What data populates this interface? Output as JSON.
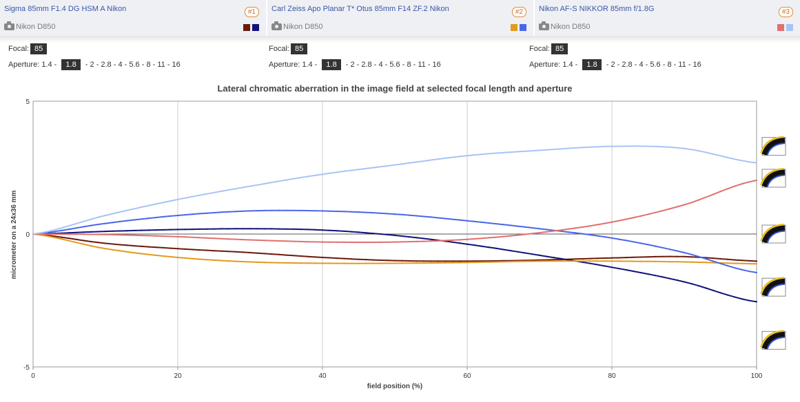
{
  "lenses": [
    {
      "name": "Sigma 85mm F1.4 DG HSM A Nikon",
      "number": "#1",
      "camera": "Nikon D850",
      "colors": [
        "#6b1a0c",
        "#12127a"
      ]
    },
    {
      "name": "Carl Zeiss Apo Planar T* Otus 85mm F14 ZF.2 Nikon",
      "number": "#2",
      "camera": "Nikon D850",
      "colors": [
        "#e29a1e",
        "#4a66e8"
      ]
    },
    {
      "name": "Nikon AF-S NIKKOR 85mm f/1.8G",
      "number": "#3",
      "camera": "Nikon D850",
      "colors": [
        "#e07070",
        "#a8c4f4"
      ]
    }
  ],
  "settings": {
    "focal_label": "Focal:",
    "focal_value": "85",
    "aperture_label": "Aperture:",
    "apertures": [
      "1.4",
      "1.8",
      "2",
      "2.8",
      "4",
      "5.6",
      "8",
      "11",
      "16"
    ],
    "selected_aperture": "1.8"
  },
  "chart_data": {
    "type": "line",
    "title": "Lateral chromatic aberration in the image field at selected focal length and aperture",
    "xlabel": "field position (%)",
    "ylabel": "micrometer on a 24x36 mm",
    "xlim": [
      0,
      100
    ],
    "ylim": [
      -5,
      5
    ],
    "xticks": [
      0,
      20,
      40,
      60,
      80,
      100
    ],
    "yticks": [
      -5,
      0,
      5
    ],
    "grid": "vertical",
    "x": [
      0,
      10,
      20,
      30,
      40,
      50,
      60,
      70,
      80,
      90,
      100
    ],
    "series": [
      {
        "color": "#6b1a0c",
        "values": [
          0,
          -0.35,
          -0.55,
          -0.7,
          -0.88,
          -1.0,
          -1.02,
          -0.98,
          -0.9,
          -0.85,
          -1.02
        ]
      },
      {
        "color": "#12127a",
        "values": [
          0,
          0.1,
          0.17,
          0.2,
          0.15,
          -0.05,
          -0.38,
          -0.8,
          -1.25,
          -1.8,
          -2.55
        ]
      },
      {
        "color": "#e29a1e",
        "values": [
          0,
          -0.55,
          -0.88,
          -1.05,
          -1.1,
          -1.1,
          -1.07,
          -1.02,
          -1.02,
          -1.05,
          -1.12
        ]
      },
      {
        "color": "#4a66e8",
        "values": [
          0,
          0.4,
          0.7,
          0.87,
          0.87,
          0.75,
          0.5,
          0.2,
          -0.15,
          -0.7,
          -1.45
        ]
      },
      {
        "color": "#e07070",
        "values": [
          0,
          -0.02,
          -0.1,
          -0.22,
          -0.3,
          -0.3,
          -0.2,
          0.05,
          0.45,
          1.1,
          2.02
        ]
      },
      {
        "color": "#a8c4f4",
        "values": [
          0,
          0.7,
          1.3,
          1.8,
          2.25,
          2.6,
          2.95,
          3.15,
          3.3,
          3.22,
          2.68
        ]
      }
    ],
    "side_icons": [
      "ca-sample-icon",
      "ca-sample-icon",
      "ca-sample-icon",
      "ca-sample-icon",
      "ca-sample-icon"
    ]
  }
}
